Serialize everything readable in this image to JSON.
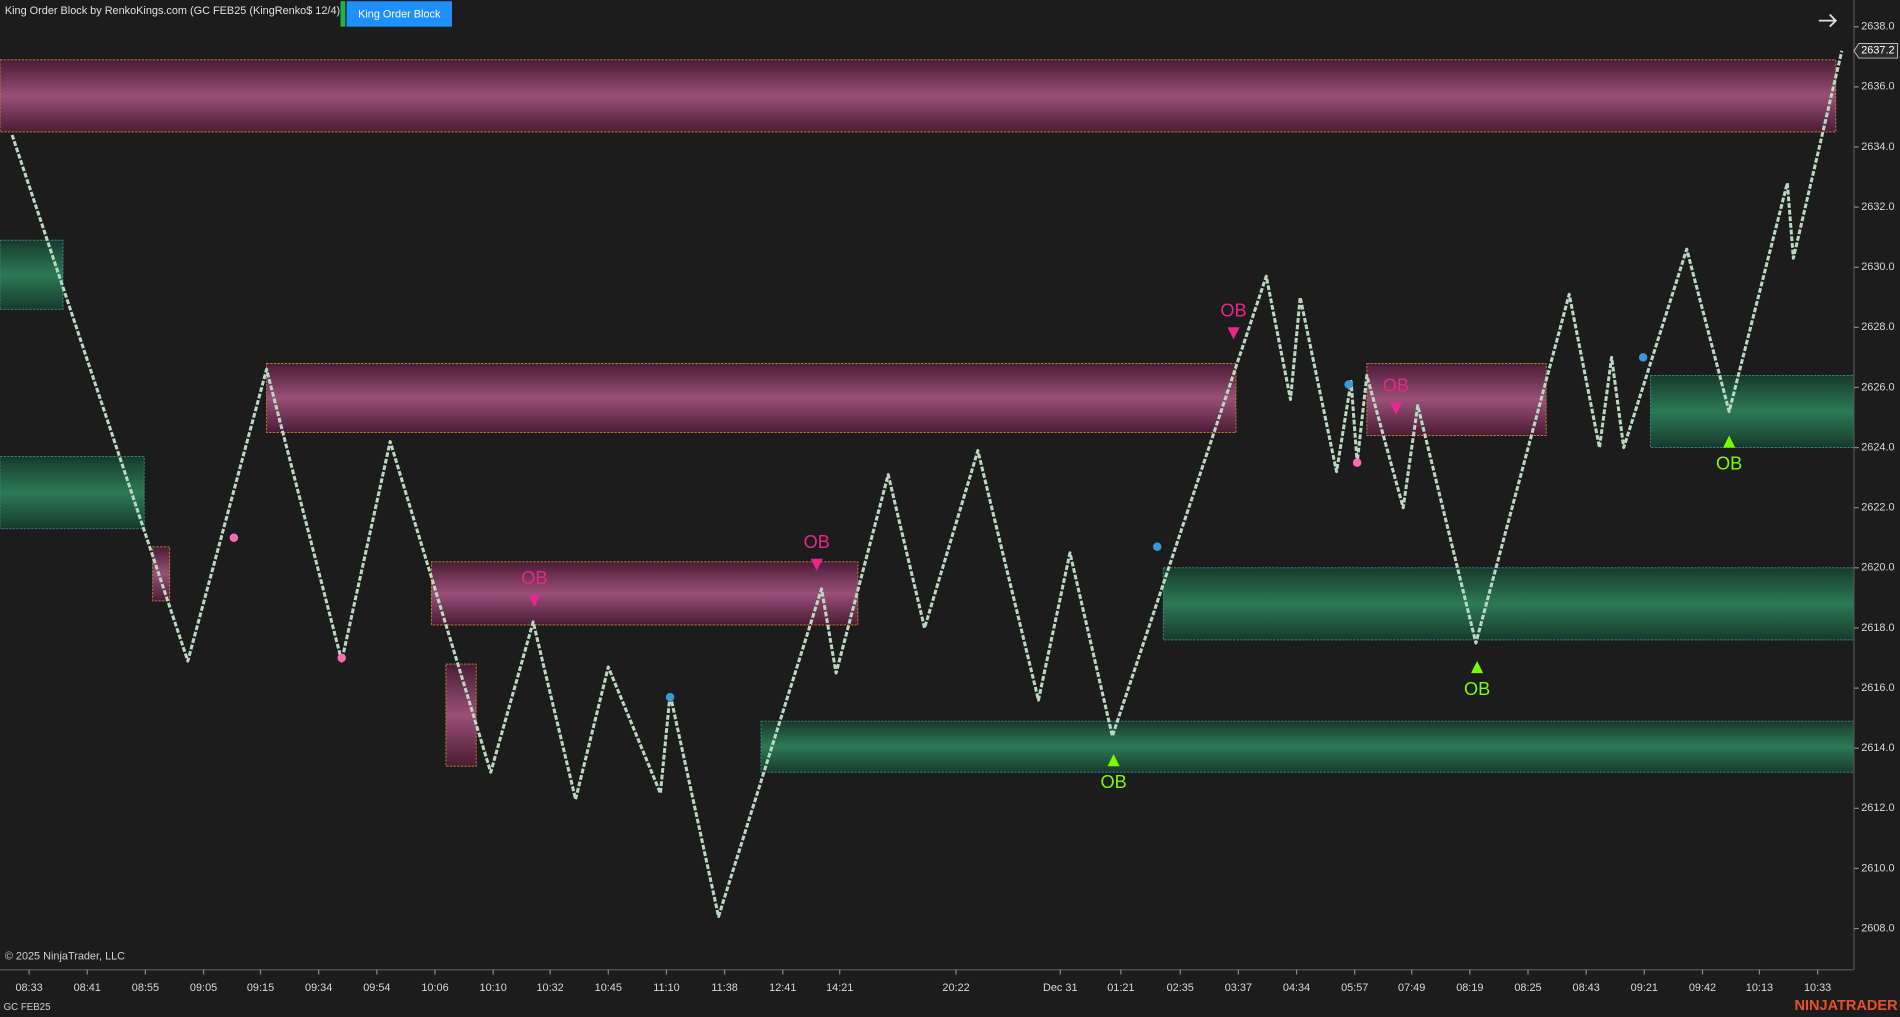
{
  "header": {
    "title": "King Order Block by RenkoKings.com (GC FEB25 (KingRenko$ 12/4))",
    "button": "King Order Block"
  },
  "footer": {
    "copyright": "© 2025 NinjaTrader, LLC",
    "instrument": "GC FEB25",
    "brand": "NINJATRADER"
  },
  "chart_data": {
    "type": "line",
    "x": [
      2,
      31,
      44,
      56.4,
      64.4,
      81,
      88,
      95,
      100.4,
      109,
      110.6,
      118.6,
      135.6,
      138,
      146.6,
      152.6,
      161.4,
      171.4,
      176.6,
      183.6,
      209,
      213,
      214.6,
      220.6,
      223,
      224,
      225.6,
      231.6,
      234,
      243.6,
      259,
      264,
      266,
      268,
      278.4,
      285.4,
      295,
      296,
      304
    ],
    "values": [
      2634.4,
      2616.9,
      2626.6,
      2616.9,
      2624.2,
      2613.2,
      2618.2,
      2612.3,
      2616.7,
      2612.5,
      2615.8,
      2608.4,
      2619.3,
      2616.5,
      2623.1,
      2618.0,
      2623.9,
      2615.6,
      2620.5,
      2614.4,
      2629.7,
      2625.6,
      2629.0,
      2623.2,
      2626.2,
      2623.5,
      2626.4,
      2622.0,
      2625.4,
      2617.5,
      2629.1,
      2624.0,
      2627.0,
      2624.0,
      2630.6,
      2625.2,
      2632.8,
      2630.3,
      2637.2
    ],
    "color": "#b8d8c0",
    "last_price": {
      "value": 2637.2,
      "label": "2637.2"
    },
    "xlim": [
      0,
      306
    ],
    "ylim": [
      2606.63,
      2638.89
    ],
    "xticks": [
      {
        "value": 4.8,
        "label": "08:33"
      },
      {
        "value": 14.4,
        "label": "08:41"
      },
      {
        "value": 24,
        "label": "08:55"
      },
      {
        "value": 33.6,
        "label": "09:05"
      },
      {
        "value": 43,
        "label": "09:15"
      },
      {
        "value": 52.6,
        "label": "09:34"
      },
      {
        "value": 62.2,
        "label": "09:54"
      },
      {
        "value": 71.8,
        "label": "10:06"
      },
      {
        "value": 81.4,
        "label": "10:10"
      },
      {
        "value": 90.8,
        "label": "10:32"
      },
      {
        "value": 100.4,
        "label": "10:45"
      },
      {
        "value": 110,
        "label": "11:10"
      },
      {
        "value": 119.6,
        "label": "11:38"
      },
      {
        "value": 129.2,
        "label": "12:41"
      },
      {
        "value": 138.6,
        "label": "14:21"
      },
      {
        "value": 157.8,
        "label": "20:22"
      },
      {
        "value": 175,
        "label": "Dec 31"
      },
      {
        "value": 185,
        "label": "01:21"
      },
      {
        "value": 194.8,
        "label": "02:35"
      },
      {
        "value": 204.4,
        "label": "03:37"
      },
      {
        "value": 214,
        "label": "04:34"
      },
      {
        "value": 223.6,
        "label": "05:57"
      },
      {
        "value": 233,
        "label": "07:49"
      },
      {
        "value": 242.6,
        "label": "08:19"
      },
      {
        "value": 252.2,
        "label": "08:25"
      },
      {
        "value": 261.8,
        "label": "08:43"
      },
      {
        "value": 271.4,
        "label": "09:21"
      },
      {
        "value": 281,
        "label": "09:42"
      },
      {
        "value": 290.4,
        "label": "10:13"
      },
      {
        "value": 300,
        "label": "10:33"
      }
    ],
    "yticks": [
      {
        "value": 2608,
        "label": "2608.0"
      },
      {
        "value": 2610,
        "label": "2610.0"
      },
      {
        "value": 2612,
        "label": "2612.0"
      },
      {
        "value": 2614,
        "label": "2614.0"
      },
      {
        "value": 2616,
        "label": "2616.0"
      },
      {
        "value": 2618,
        "label": "2618.0"
      },
      {
        "value": 2620,
        "label": "2620.0"
      },
      {
        "value": 2622,
        "label": "2622.0"
      },
      {
        "value": 2624,
        "label": "2624.0"
      },
      {
        "value": 2626,
        "label": "2626.0"
      },
      {
        "value": 2628,
        "label": "2628.0"
      },
      {
        "value": 2630,
        "label": "2630.0"
      },
      {
        "value": 2632,
        "label": "2632.0"
      },
      {
        "value": 2634,
        "label": "2634.0"
      },
      {
        "value": 2636,
        "label": "2636.0"
      },
      {
        "value": 2638,
        "label": "2638.0"
      }
    ],
    "bearish_color": "#e8278c",
    "bullish_color": "#7cfc00",
    "bearish_zones": [
      {
        "x0": 0,
        "x1": 303,
        "top": 2636.9,
        "bottom": 2634.5
      },
      {
        "x0": 44,
        "x1": 204,
        "top": 2626.8,
        "bottom": 2624.5
      },
      {
        "x0": 71.2,
        "x1": 141.6,
        "top": 2620.2,
        "bottom": 2618.1
      },
      {
        "x0": 225.6,
        "x1": 255.2,
        "top": 2626.8,
        "bottom": 2624.4
      },
      {
        "x0": 25.2,
        "x1": 28,
        "top": 2620.7,
        "bottom": 2618.9
      },
      {
        "x0": 73.6,
        "x1": 78.6,
        "top": 2616.8,
        "bottom": 2613.4
      }
    ],
    "bullish_zones": [
      {
        "x0": 0,
        "x1": 10.4,
        "top": 2630.9,
        "bottom": 2628.6
      },
      {
        "x0": 0,
        "x1": 23.8,
        "top": 2623.7,
        "bottom": 2621.3
      },
      {
        "x0": 125.6,
        "x1": 306,
        "top": 2614.9,
        "bottom": 2613.2
      },
      {
        "x0": 192,
        "x1": 306,
        "top": 2620.0,
        "bottom": 2617.6
      },
      {
        "x0": 272.4,
        "x1": 306,
        "top": 2626.4,
        "bottom": 2624.0
      }
    ],
    "bearish_signals": [
      {
        "x": 88.2,
        "y": 2618.9,
        "label": "OB"
      },
      {
        "x": 134.8,
        "y": 2620.1,
        "label": "OB"
      },
      {
        "x": 203.6,
        "y": 2627.8,
        "label": "OB"
      },
      {
        "x": 230.4,
        "y": 2625.3,
        "label": "OB"
      }
    ],
    "bullish_signals": [
      {
        "x": 183.8,
        "y": 2613.6,
        "label": "OB"
      },
      {
        "x": 243.8,
        "y": 2616.7,
        "label": "OB"
      },
      {
        "x": 285.4,
        "y": 2624.2,
        "label": "OB"
      }
    ],
    "swing_points": [
      {
        "x": 38.6,
        "y": 2621.0,
        "color": "#ff69b4"
      },
      {
        "x": 56.4,
        "y": 2617.0,
        "color": "#ff69b4"
      },
      {
        "x": 224,
        "y": 2623.5,
        "color": "#ff69b4"
      },
      {
        "x": 110.6,
        "y": 2615.7,
        "color": "#3a9ad9"
      },
      {
        "x": 191,
        "y": 2620.7,
        "color": "#3a9ad9"
      },
      {
        "x": 222.6,
        "y": 2626.1,
        "color": "#3a9ad9"
      },
      {
        "x": 271.2,
        "y": 2627.0,
        "color": "#3a9ad9"
      }
    ]
  }
}
